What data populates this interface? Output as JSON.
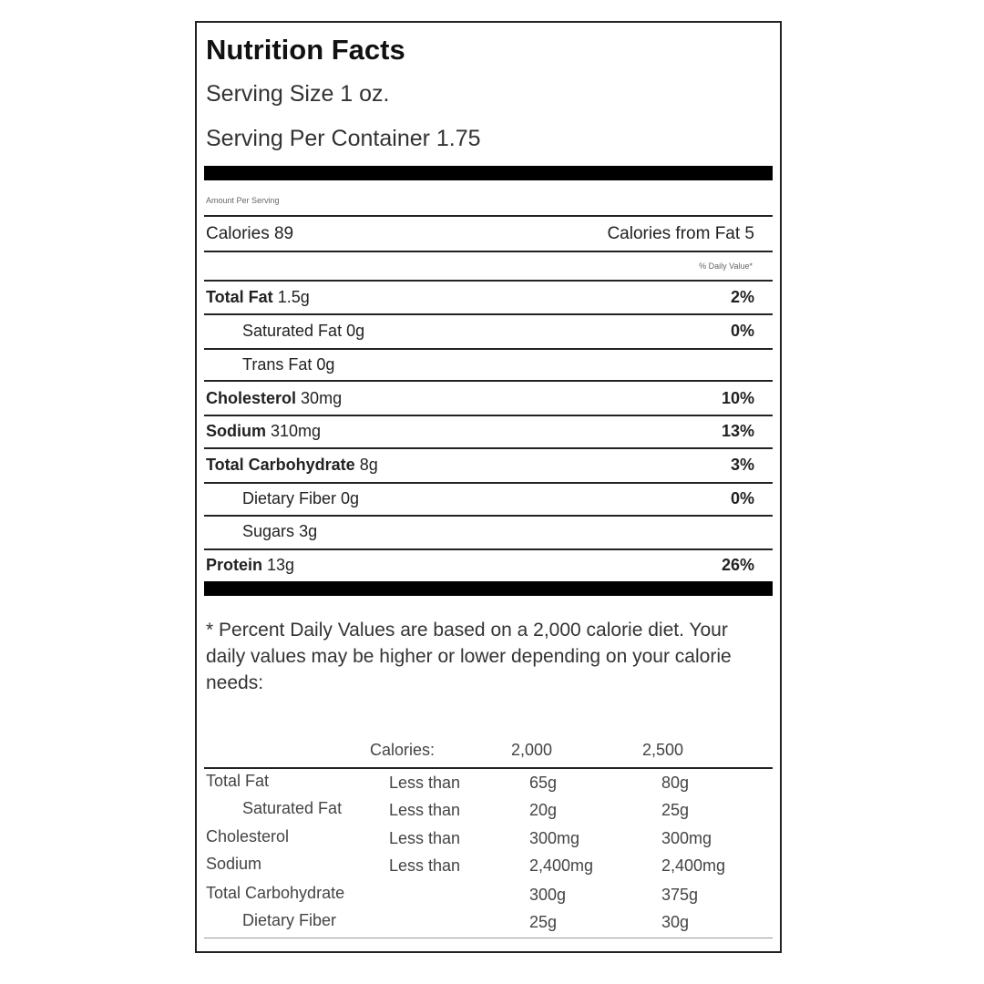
{
  "label": {
    "title": "Nutrition Facts",
    "serving_size": "Serving Size 1 oz.",
    "servings_per_container": "Serving Per Container 1.75",
    "amount_per_serving": "Amount Per Serving",
    "calories": "Calories 89",
    "calories_from_fat": "Calories from Fat 5",
    "daily_value_header": "% Daily Value*",
    "nutrients": [
      {
        "name": "Total Fat",
        "amount": "1.5g",
        "pct": "2%"
      },
      {
        "name": "Saturated Fat",
        "amount": "0g",
        "pct": "0%"
      },
      {
        "name": "Trans Fat",
        "amount": "0g",
        "pct": ""
      },
      {
        "name": "Cholesterol",
        "amount": "30mg",
        "pct": "10%"
      },
      {
        "name": "Sodium",
        "amount": "310mg",
        "pct": "13%"
      },
      {
        "name": "Total Carbohydrate",
        "amount": "8g",
        "pct": "3%"
      },
      {
        "name": "Dietary Fiber",
        "amount": "0g",
        "pct": "0%"
      },
      {
        "name": "Sugars",
        "amount": "3g",
        "pct": ""
      },
      {
        "name": "Protein",
        "amount": "13g",
        "pct": "26%"
      }
    ],
    "footnote": "* Percent Daily Values are based on a 2,000 calorie diet. Your daily values may be higher or lower depending on your calorie needs:",
    "reference_table": {
      "headers": [
        "Calories:",
        "2,000",
        "2,500"
      ],
      "rows": [
        {
          "name": "Total Fat",
          "qualifier": "Less than",
          "v2000": "65g",
          "v2500": "80g"
        },
        {
          "name": "Saturated Fat",
          "qualifier": "Less than",
          "v2000": "20g",
          "v2500": "25g"
        },
        {
          "name": "Cholesterol",
          "qualifier": "Less than",
          "v2000": "300mg",
          "v2500": "300mg"
        },
        {
          "name": "Sodium",
          "qualifier": "Less than",
          "v2000": "2,400mg",
          "v2500": "2,400mg"
        },
        {
          "name": "Total Carbohydrate",
          "qualifier": "",
          "v2000": "300g",
          "v2500": "375g"
        },
        {
          "name": "Dietary Fiber",
          "qualifier": "",
          "v2000": "25g",
          "v2500": "30g"
        }
      ]
    }
  }
}
